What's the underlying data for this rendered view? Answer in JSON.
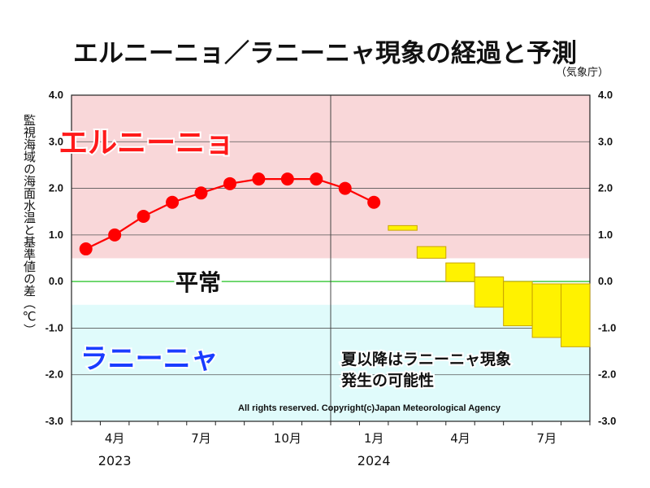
{
  "title": "エルニーニョ／ラニーニャ現象の経過と予測",
  "source": "（気象庁）",
  "colors": {
    "elnino_bg": "#f9d7d9",
    "normal_bg": "#ffffff",
    "lanina_bg": "#e0fbfb",
    "zero_line": "#44cc44",
    "observed": "#ff0000",
    "forecast_fill": "#fff200",
    "forecast_edge": "#c9a400",
    "elnino_text": "#ff1a1a",
    "lanina_text": "#1a3cff"
  },
  "chart_data": {
    "type": "line",
    "title": "エルニーニョ／ラニーニャ現象の経過と予測",
    "ylabel": "監視海域の海面水温と基準値の差（℃）",
    "ylim": [
      -3.0,
      4.0
    ],
    "yticks": [
      "4.0",
      "3.0",
      "2.0",
      "1.0",
      "0.0",
      "-1.0",
      "-2.0",
      "-3.0"
    ],
    "xlim": [
      0,
      18
    ],
    "xticks": [
      {
        "x": 1.5,
        "label": "4月"
      },
      {
        "x": 4.5,
        "label": "7月"
      },
      {
        "x": 7.5,
        "label": "10月"
      },
      {
        "x": 10.5,
        "label": "1月"
      },
      {
        "x": 13.5,
        "label": "4月"
      },
      {
        "x": 16.5,
        "label": "7月"
      }
    ],
    "years": [
      {
        "x": 1.5,
        "label": "2023"
      },
      {
        "x": 10.5,
        "label": "2024"
      }
    ],
    "year_divider_x": 9,
    "bands": [
      {
        "name": "エルニーニョ",
        "from": 0.5,
        "to": 4.0
      },
      {
        "name": "平常",
        "from": -0.5,
        "to": 0.5
      },
      {
        "name": "ラニーニャ",
        "from": -3.0,
        "to": -0.5
      }
    ],
    "observed": {
      "x": [
        0.5,
        1.5,
        2.5,
        3.5,
        4.5,
        5.5,
        6.5,
        7.5,
        8.5,
        9.5,
        10.5
      ],
      "y": [
        0.7,
        1.0,
        1.4,
        1.7,
        1.9,
        2.1,
        2.2,
        2.2,
        2.2,
        2.0,
        1.7
      ]
    },
    "forecast": [
      {
        "x": 11.5,
        "low": 1.1,
        "high": 1.2
      },
      {
        "x": 12.5,
        "low": 0.5,
        "high": 0.75
      },
      {
        "x": 13.5,
        "low": 0.0,
        "high": 0.4
      },
      {
        "x": 14.5,
        "low": -0.55,
        "high": 0.1
      },
      {
        "x": 15.5,
        "low": -0.95,
        "high": 0.0
      },
      {
        "x": 16.5,
        "low": -1.2,
        "high": -0.05
      },
      {
        "x": 17.5,
        "low": -1.4,
        "high": -0.05
      }
    ],
    "labels": {
      "elnino": "エルニーニョ",
      "normal": "平常",
      "lanina": "ラニーニャ",
      "note_line1": "夏以降はラニーニャ現象",
      "note_line2": "発生の可能性",
      "copyright": "All rights reserved. Copyright(c)Japan Meteorological Agency"
    }
  }
}
